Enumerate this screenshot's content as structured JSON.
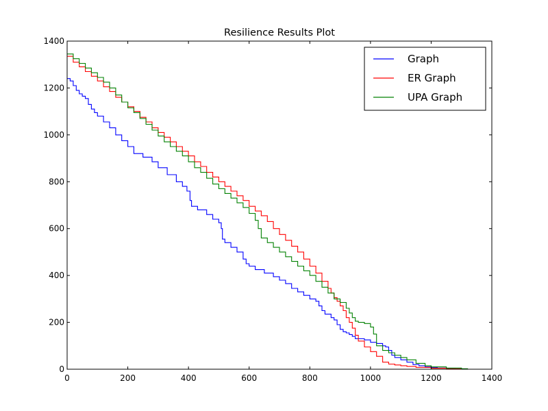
{
  "chart_data": {
    "type": "line",
    "title": "Resilience Results Plot",
    "xlabel": "",
    "ylabel": "",
    "xlim": [
      0,
      1400
    ],
    "ylim": [
      0,
      1400
    ],
    "xticks": [
      0,
      200,
      400,
      600,
      800,
      1000,
      1200,
      1400
    ],
    "yticks": [
      0,
      200,
      400,
      600,
      800,
      1000,
      1200,
      1400
    ],
    "grid": false,
    "legend_position": "top-right",
    "series": [
      {
        "name": "Graph",
        "color": "#0000ff",
        "x": [
          0,
          10,
          20,
          30,
          40,
          50,
          60,
          70,
          80,
          90,
          100,
          120,
          140,
          160,
          180,
          200,
          220,
          250,
          280,
          300,
          330,
          360,
          380,
          395,
          405,
          410,
          430,
          460,
          480,
          500,
          508,
          512,
          520,
          540,
          560,
          580,
          590,
          600,
          620,
          650,
          680,
          700,
          720,
          740,
          760,
          780,
          800,
          820,
          830,
          840,
          850,
          870,
          880,
          890,
          900,
          910,
          920,
          930,
          940,
          950,
          960,
          980,
          1000,
          1020,
          1040,
          1050,
          1060,
          1070,
          1080,
          1100,
          1120,
          1140,
          1160,
          1180,
          1200,
          1220,
          1250,
          1280,
          1300,
          1310
        ],
        "values": [
          1240,
          1230,
          1210,
          1190,
          1175,
          1165,
          1155,
          1130,
          1110,
          1095,
          1080,
          1055,
          1030,
          1000,
          975,
          950,
          920,
          905,
          885,
          860,
          830,
          800,
          780,
          760,
          720,
          695,
          680,
          660,
          640,
          625,
          600,
          555,
          540,
          520,
          500,
          470,
          450,
          440,
          425,
          410,
          395,
          380,
          365,
          345,
          330,
          315,
          300,
          290,
          270,
          250,
          235,
          220,
          210,
          190,
          170,
          160,
          155,
          148,
          140,
          130,
          130,
          125,
          115,
          110,
          100,
          95,
          80,
          60,
          50,
          40,
          30,
          20,
          15,
          10,
          8,
          5,
          3,
          2,
          1,
          0
        ]
      },
      {
        "name": "ER Graph",
        "color": "#ff0000",
        "x": [
          0,
          20,
          40,
          60,
          80,
          100,
          120,
          140,
          160,
          180,
          200,
          220,
          240,
          260,
          280,
          300,
          320,
          340,
          360,
          380,
          400,
          420,
          440,
          460,
          480,
          500,
          520,
          540,
          560,
          580,
          600,
          620,
          640,
          660,
          680,
          700,
          720,
          740,
          760,
          780,
          800,
          820,
          840,
          860,
          870,
          880,
          890,
          900,
          910,
          920,
          930,
          940,
          950,
          960,
          980,
          1000,
          1020,
          1040,
          1060,
          1080,
          1100,
          1120,
          1150,
          1200,
          1250,
          1300,
          1320
        ],
        "values": [
          1335,
          1310,
          1290,
          1270,
          1250,
          1230,
          1205,
          1185,
          1160,
          1140,
          1120,
          1100,
          1075,
          1055,
          1030,
          1010,
          990,
          970,
          950,
          930,
          910,
          885,
          865,
          840,
          820,
          800,
          780,
          760,
          740,
          720,
          695,
          675,
          655,
          630,
          600,
          575,
          550,
          525,
          500,
          470,
          440,
          410,
          375,
          345,
          325,
          305,
          290,
          270,
          250,
          220,
          200,
          175,
          145,
          120,
          95,
          75,
          55,
          30,
          22,
          18,
          15,
          12,
          8,
          4,
          2,
          1,
          0
        ]
      },
      {
        "name": "UPA Graph",
        "color": "#008000",
        "x": [
          0,
          20,
          40,
          60,
          80,
          100,
          120,
          140,
          160,
          180,
          200,
          220,
          240,
          260,
          280,
          300,
          320,
          340,
          360,
          380,
          400,
          420,
          440,
          460,
          480,
          500,
          520,
          540,
          560,
          580,
          600,
          620,
          630,
          640,
          660,
          680,
          700,
          720,
          740,
          760,
          780,
          800,
          820,
          840,
          860,
          880,
          900,
          920,
          930,
          940,
          950,
          960,
          980,
          1000,
          1010,
          1020,
          1040,
          1060,
          1080,
          1100,
          1120,
          1150,
          1180,
          1200,
          1250,
          1300,
          1320
        ],
        "values": [
          1345,
          1325,
          1305,
          1285,
          1265,
          1245,
          1225,
          1200,
          1170,
          1140,
          1115,
          1095,
          1070,
          1045,
          1020,
          995,
          970,
          950,
          930,
          910,
          885,
          860,
          840,
          815,
          790,
          770,
          750,
          730,
          710,
          690,
          665,
          635,
          600,
          560,
          540,
          520,
          500,
          480,
          460,
          440,
          420,
          400,
          375,
          350,
          325,
          300,
          285,
          260,
          240,
          220,
          205,
          200,
          195,
          180,
          150,
          100,
          80,
          70,
          60,
          50,
          40,
          25,
          15,
          10,
          5,
          2,
          0
        ]
      }
    ]
  }
}
